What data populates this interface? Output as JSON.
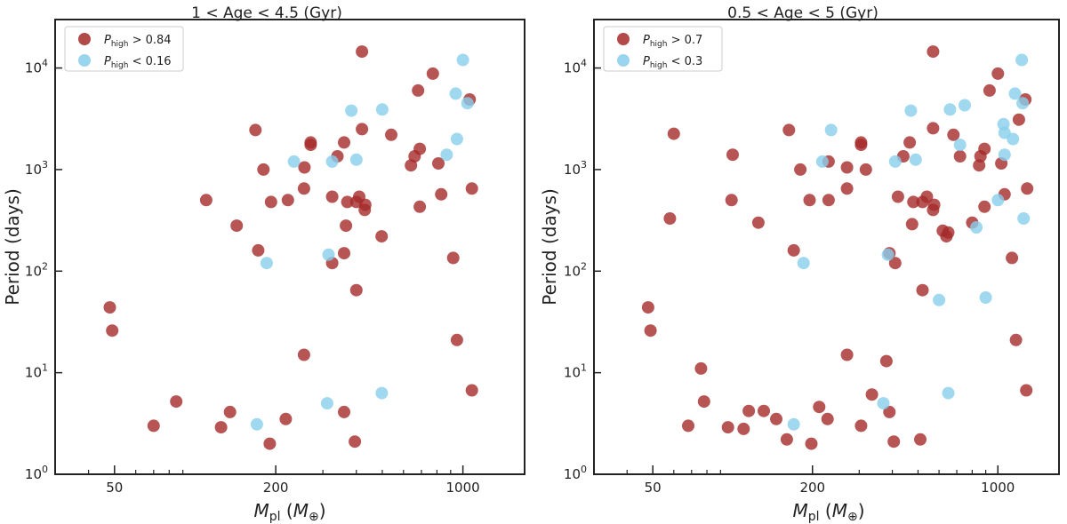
{
  "chart_data": [
    {
      "type": "scatter",
      "title": "1 < Age < 4.5 (Gyr)",
      "xlabel": "M_pl (M_⊕)",
      "ylabel": "Period (days)",
      "xscale": "log",
      "yscale": "log",
      "xlim": [
        30,
        1700
      ],
      "ylim": [
        1,
        30000
      ],
      "x_ticks": [
        {
          "v": 50,
          "label": "50"
        },
        {
          "v": 200,
          "label": "200"
        },
        {
          "v": 1000,
          "label": "1000"
        }
      ],
      "y_ticks": [
        {
          "v": 1,
          "base": "10",
          "exp": "0"
        },
        {
          "v": 10,
          "base": "10",
          "exp": "1"
        },
        {
          "v": 100,
          "base": "10",
          "exp": "2"
        },
        {
          "v": 1000,
          "base": "10",
          "exp": "3"
        },
        {
          "v": 10000,
          "base": "10",
          "exp": "4"
        }
      ],
      "legend_position": "top-left",
      "series": [
        {
          "name": "P_high > 0.84",
          "legend_main": "P",
          "legend_sub": "high",
          "legend_rest": " > 0.84",
          "color": "#a52a2a",
          "points": [
            [
              48,
              44
            ],
            [
              49,
              26
            ],
            [
              70,
              3
            ],
            [
              85,
              5.2
            ],
            [
              110,
              500
            ],
            [
              125,
              2.9
            ],
            [
              135,
              4.1
            ],
            [
              143,
              280
            ],
            [
              168,
              2450
            ],
            [
              172,
              160
            ],
            [
              180,
              1000
            ],
            [
              190,
              2
            ],
            [
              192,
              480
            ],
            [
              218,
              3.5
            ],
            [
              222,
              500
            ],
            [
              255,
              15
            ],
            [
              255,
              650
            ],
            [
              256,
              1050
            ],
            [
              270,
              1750
            ],
            [
              270,
              1850
            ],
            [
              325,
              120
            ],
            [
              325,
              540
            ],
            [
              340,
              1350
            ],
            [
              360,
              4.1
            ],
            [
              360,
              150
            ],
            [
              360,
              1850
            ],
            [
              366,
              280
            ],
            [
              370,
              480
            ],
            [
              395,
              2.1
            ],
            [
              400,
              65
            ],
            [
              400,
              480
            ],
            [
              410,
              540
            ],
            [
              420,
              2500
            ],
            [
              430,
              400
            ],
            [
              432,
              450
            ],
            [
              497,
              220
            ],
            [
              540,
              2200
            ],
            [
              640,
              1100
            ],
            [
              660,
              1350
            ],
            [
              680,
              6000
            ],
            [
              690,
              430
            ],
            [
              690,
              1600
            ],
            [
              772,
              8800
            ],
            [
              810,
              1150
            ],
            [
              830,
              570
            ],
            [
              920,
              135
            ],
            [
              950,
              21
            ],
            [
              1060,
              4900
            ],
            [
              1080,
              650
            ],
            [
              1080,
              6.7
            ],
            [
              420,
              14500
            ]
          ]
        },
        {
          "name": "P_high < 0.16",
          "legend_main": "P",
          "legend_sub": "high",
          "legend_rest": " < 0.16",
          "color": "#87ceeb",
          "points": [
            [
              170,
              3.1
            ],
            [
              185,
              120
            ],
            [
              234,
              1200
            ],
            [
              311,
              5
            ],
            [
              315,
              145
            ],
            [
              325,
              1200
            ],
            [
              383,
              3800
            ],
            [
              400,
              1250
            ],
            [
              498,
              6.3
            ],
            [
              500,
              3900
            ],
            [
              870,
              1400
            ],
            [
              940,
              5600
            ],
            [
              950,
              2000
            ],
            [
              1000,
              12000
            ],
            [
              1040,
              4500
            ]
          ]
        }
      ]
    },
    {
      "type": "scatter",
      "title": "0.5 < Age < 5 (Gyr)",
      "xlabel": "M_pl (M_⊕)",
      "ylabel": "Period (days)",
      "xscale": "log",
      "yscale": "log",
      "xlim": [
        30,
        1700
      ],
      "ylim": [
        1,
        30000
      ],
      "x_ticks": [
        {
          "v": 50,
          "label": "50"
        },
        {
          "v": 200,
          "label": "200"
        },
        {
          "v": 1000,
          "label": "1000"
        }
      ],
      "y_ticks": [
        {
          "v": 1,
          "base": "10",
          "exp": "0"
        },
        {
          "v": 10,
          "base": "10",
          "exp": "1"
        },
        {
          "v": 100,
          "base": "10",
          "exp": "2"
        },
        {
          "v": 1000,
          "base": "10",
          "exp": "3"
        },
        {
          "v": 10000,
          "base": "10",
          "exp": "4"
        }
      ],
      "legend_position": "top-left",
      "series": [
        {
          "name": "P_high > 0.7",
          "legend_main": "P",
          "legend_sub": "high",
          "legend_rest": " > 0.7",
          "color": "#a52a2a",
          "points": [
            [
              48,
              44
            ],
            [
              49,
              26
            ],
            [
              58,
              330
            ],
            [
              60,
              2250
            ],
            [
              68,
              3
            ],
            [
              76,
              11
            ],
            [
              78,
              5.2
            ],
            [
              96,
              2.9
            ],
            [
              99,
              500
            ],
            [
              100,
              1400
            ],
            [
              110,
              2.8
            ],
            [
              115,
              4.2
            ],
            [
              125,
              300
            ],
            [
              131,
              4.2
            ],
            [
              146,
              3.5
            ],
            [
              160,
              2.2
            ],
            [
              163,
              2450
            ],
            [
              170,
              160
            ],
            [
              180,
              1000
            ],
            [
              195,
              500
            ],
            [
              198,
              2
            ],
            [
              212,
              4.6
            ],
            [
              228,
              3.5
            ],
            [
              230,
              1200
            ],
            [
              230,
              500
            ],
            [
              270,
              15
            ],
            [
              270,
              650
            ],
            [
              270,
              1050
            ],
            [
              305,
              3
            ],
            [
              305,
              1750
            ],
            [
              305,
              1850
            ],
            [
              318,
              1000
            ],
            [
              335,
              6.1
            ],
            [
              380,
              13
            ],
            [
              390,
              4.1
            ],
            [
              405,
              2.1
            ],
            [
              390,
              150
            ],
            [
              410,
              120
            ],
            [
              420,
              540
            ],
            [
              440,
              1350
            ],
            [
              465,
              1850
            ],
            [
              475,
              290
            ],
            [
              480,
              480
            ],
            [
              510,
              2.2
            ],
            [
              520,
              65
            ],
            [
              520,
              480
            ],
            [
              540,
              540
            ],
            [
              570,
              2550
            ],
            [
              570,
              400
            ],
            [
              575,
              450
            ],
            [
              620,
              250
            ],
            [
              640,
              220
            ],
            [
              650,
              240
            ],
            [
              680,
              2200
            ],
            [
              720,
              1350
            ],
            [
              800,
              300
            ],
            [
              850,
              1100
            ],
            [
              860,
              1350
            ],
            [
              890,
              430
            ],
            [
              890,
              1600
            ],
            [
              930,
              6000
            ],
            [
              1000,
              8800
            ],
            [
              1030,
              1150
            ],
            [
              1060,
              570
            ],
            [
              1130,
              135
            ],
            [
              1170,
              21
            ],
            [
              1200,
              3100
            ],
            [
              1270,
              4900
            ],
            [
              1290,
              650
            ],
            [
              1280,
              6.7
            ],
            [
              570,
              14500
            ]
          ]
        },
        {
          "name": "P_high < 0.3",
          "legend_main": "P",
          "legend_sub": "high",
          "legend_rest": " < 0.3",
          "color": "#87ceeb",
          "points": [
            [
              170,
              3.1
            ],
            [
              185,
              120
            ],
            [
              218,
              1200
            ],
            [
              235,
              2450
            ],
            [
              370,
              5
            ],
            [
              385,
              145
            ],
            [
              410,
              1200
            ],
            [
              470,
              3800
            ],
            [
              490,
              1250
            ],
            [
              600,
              52
            ],
            [
              650,
              6.3
            ],
            [
              660,
              3900
            ],
            [
              720,
              1750
            ],
            [
              750,
              4300
            ],
            [
              830,
              270
            ],
            [
              900,
              55
            ],
            [
              1000,
              500
            ],
            [
              1050,
              2800
            ],
            [
              1060,
              2300
            ],
            [
              1060,
              1400
            ],
            [
              1140,
              2000
            ],
            [
              1160,
              5600
            ],
            [
              1230,
              12000
            ],
            [
              1240,
              4500
            ],
            [
              1250,
              330
            ]
          ]
        }
      ]
    }
  ]
}
